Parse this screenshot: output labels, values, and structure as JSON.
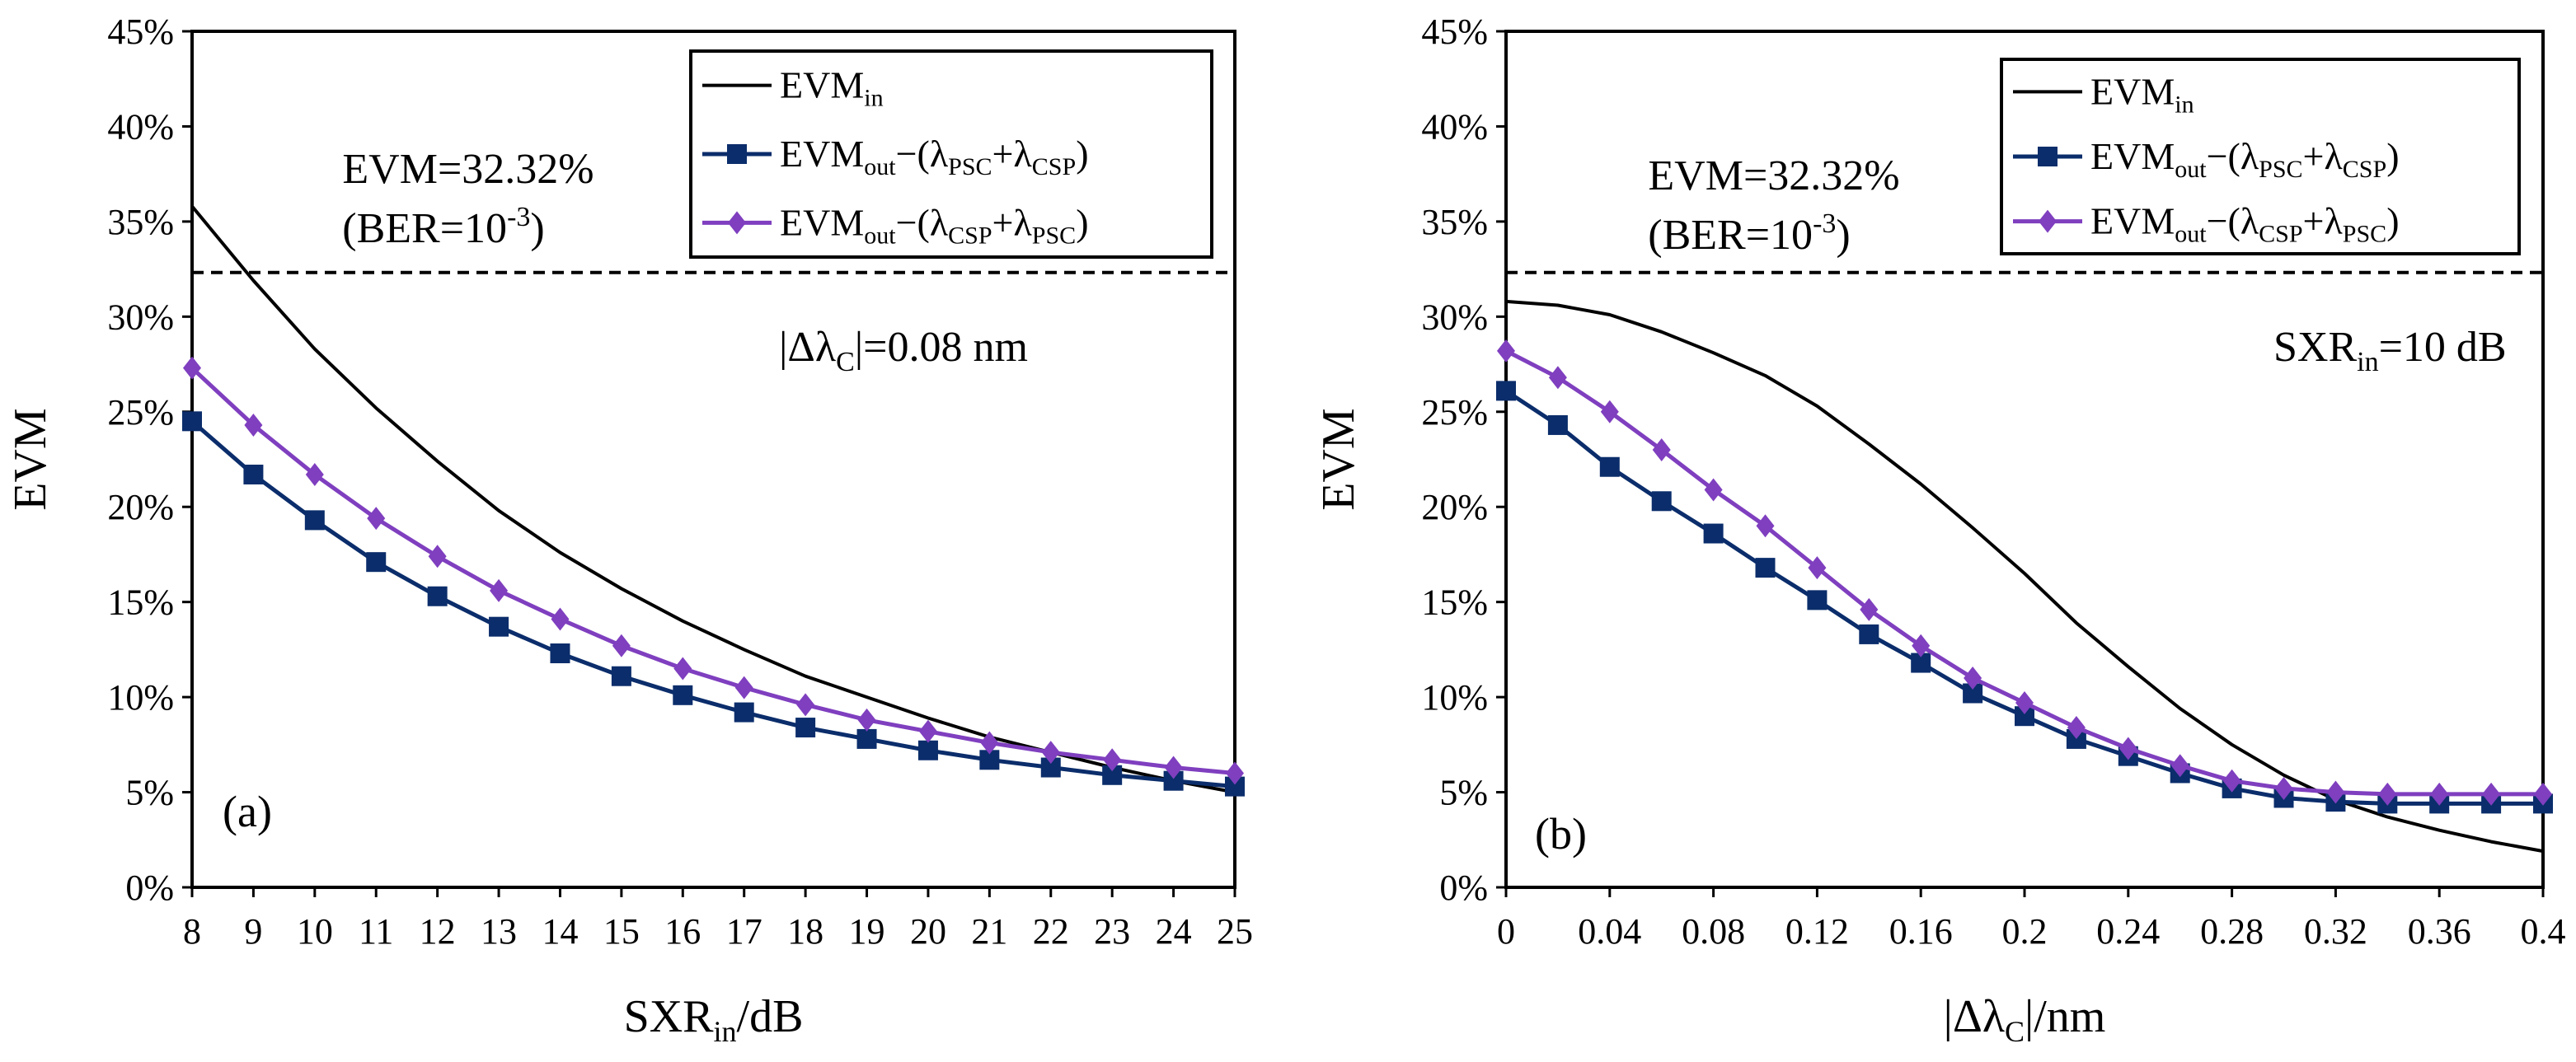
{
  "colors": {
    "evm_in": "#000000",
    "psc_csp": "#0b2d6b",
    "csp_psc": "#7f3fbf",
    "threshold": "#000000"
  },
  "legend": {
    "evm_in": {
      "main": "EVM",
      "sub": "in"
    },
    "psc_csp": {
      "main": "EVM",
      "sub": "out",
      "mid": "−(λ",
      "sub2": "PSC",
      "plus": "+λ",
      "sub3": "CSP",
      "close": ")"
    },
    "csp_psc": {
      "main": "EVM",
      "sub": "out",
      "mid": "−(λ",
      "sub2": "CSP",
      "plus": "+λ",
      "sub3": "PSC",
      "close": ")"
    }
  },
  "threshold_label": {
    "line1": "EVM=32.32%",
    "line2_pre": "(BER=10",
    "line2_sup": "-3",
    "line2_post": ")"
  },
  "ylabel": "EVM",
  "chart_data": [
    {
      "type": "line",
      "panel_label": "(a)",
      "xlabel": {
        "main": "SXR",
        "sub": "in",
        "post": "/dB"
      },
      "ylabel": "EVM",
      "condition": {
        "pre": "|Δλ",
        "sub": "C",
        "post": "|=0.08 nm"
      },
      "xlim": [
        8,
        25
      ],
      "ylim": [
        0,
        45
      ],
      "x_ticks": [
        "8",
        "9",
        "10",
        "11",
        "12",
        "13",
        "14",
        "15",
        "16",
        "17",
        "18",
        "19",
        "20",
        "21",
        "22",
        "23",
        "24",
        "25"
      ],
      "y_ticks": [
        "0%",
        "5%",
        "10%",
        "15%",
        "20%",
        "25%",
        "30%",
        "35%",
        "40%",
        "45%"
      ],
      "threshold": 32.32,
      "legend_position": "top-right",
      "x": [
        8,
        9,
        10,
        11,
        12,
        13,
        14,
        15,
        16,
        17,
        18,
        19,
        20,
        21,
        22,
        23,
        24,
        25
      ],
      "series": [
        {
          "key": "evm_in",
          "marker": "none",
          "values": [
            35.8,
            31.9,
            28.3,
            25.2,
            22.4,
            19.8,
            17.6,
            15.7,
            14.0,
            12.5,
            11.1,
            10.0,
            8.9,
            7.9,
            7.1,
            6.3,
            5.6,
            5.0
          ]
        },
        {
          "key": "psc_csp",
          "marker": "square",
          "values": [
            24.5,
            21.7,
            19.3,
            17.1,
            15.3,
            13.7,
            12.3,
            11.1,
            10.1,
            9.2,
            8.4,
            7.8,
            7.2,
            6.7,
            6.3,
            5.9,
            5.6,
            5.3
          ]
        },
        {
          "key": "csp_psc",
          "marker": "diamond",
          "values": [
            27.3,
            24.3,
            21.7,
            19.4,
            17.4,
            15.6,
            14.1,
            12.7,
            11.5,
            10.5,
            9.6,
            8.8,
            8.2,
            7.6,
            7.1,
            6.7,
            6.3,
            6.0
          ]
        }
      ]
    },
    {
      "type": "line",
      "panel_label": "(b)",
      "xlabel": {
        "pre": "|Δλ",
        "sub": "C",
        "post": "|/nm"
      },
      "ylabel": "EVM",
      "condition": {
        "main": "SXR",
        "sub": "in",
        "post": "=10 dB"
      },
      "xlim": [
        0,
        0.4
      ],
      "ylim": [
        0,
        45
      ],
      "x_ticks": [
        "0",
        "0.04",
        "0.08",
        "0.12",
        "0.16",
        "0.2",
        "0.24",
        "0.28",
        "0.32",
        "0.36",
        "0.4"
      ],
      "y_ticks": [
        "0%",
        "5%",
        "10%",
        "15%",
        "20%",
        "25%",
        "30%",
        "35%",
        "40%",
        "45%"
      ],
      "threshold": 32.32,
      "legend_position": "top-right",
      "x": [
        0,
        0.02,
        0.04,
        0.06,
        0.08,
        0.1,
        0.12,
        0.14,
        0.16,
        0.18,
        0.2,
        0.22,
        0.24,
        0.26,
        0.28,
        0.3,
        0.32,
        0.34,
        0.36,
        0.38,
        0.4
      ],
      "series": [
        {
          "key": "evm_in",
          "marker": "none",
          "values": [
            30.8,
            30.6,
            30.1,
            29.2,
            28.1,
            26.9,
            25.3,
            23.3,
            21.2,
            18.9,
            16.5,
            13.9,
            11.6,
            9.4,
            7.5,
            5.9,
            4.6,
            3.7,
            3.0,
            2.4,
            1.9
          ]
        },
        {
          "key": "psc_csp",
          "marker": "square",
          "values": [
            26.1,
            24.3,
            22.1,
            20.3,
            18.6,
            16.8,
            15.1,
            13.3,
            11.8,
            10.2,
            9.0,
            7.8,
            6.9,
            6.0,
            5.2,
            4.7,
            4.5,
            4.4,
            4.4,
            4.4,
            4.4
          ]
        },
        {
          "key": "csp_psc",
          "marker": "diamond",
          "values": [
            28.2,
            26.8,
            25.0,
            23.0,
            20.9,
            19.0,
            16.8,
            14.6,
            12.7,
            11.0,
            9.7,
            8.4,
            7.3,
            6.4,
            5.6,
            5.2,
            5.0,
            4.9,
            4.9,
            4.9,
            4.9
          ]
        }
      ]
    }
  ]
}
